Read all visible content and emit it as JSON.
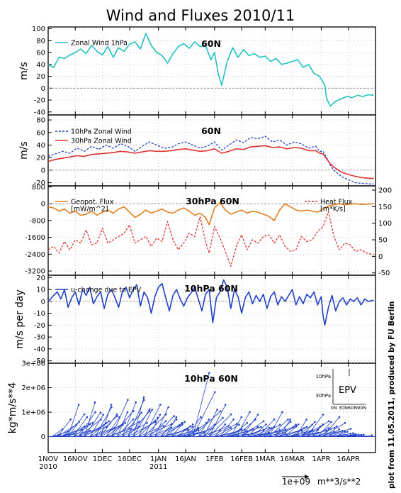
{
  "page": {
    "title": "Wind and Fluxes 2010/11",
    "credit": "plot from 11.05.2011, produced by FU Berlin",
    "x_axis": {
      "tick_labels": [
        "1NOV\n2010",
        "16NOV",
        "1DEC",
        "16DEC",
        "1JAN\n2011",
        "16JAN",
        "1FEB",
        "16FEB",
        "1MAR",
        "16MAR",
        "1APR",
        "16APR"
      ]
    },
    "vector_scale": {
      "magnitude_label": "1e+09",
      "unit_label": "m**3/s**2"
    }
  },
  "colors": {
    "cyan": "#20c0c0",
    "blue": "#2040c8",
    "red": "#e03030",
    "orange": "#e08020",
    "grid": "#b0b0b0"
  },
  "chart_data": [
    {
      "type": "line",
      "panel_label": "60N",
      "ylabel": "m/s",
      "ylim": [
        -45,
        103
      ],
      "yticks": [
        100,
        80,
        60,
        40,
        20,
        0,
        -20,
        -40
      ],
      "x_days": [
        0,
        3,
        6,
        9,
        12,
        15,
        18,
        21,
        24,
        27,
        30,
        33,
        36,
        39,
        42,
        45,
        48,
        51,
        54,
        57,
        60,
        63,
        66,
        69,
        72,
        75,
        78,
        81,
        84,
        87,
        90,
        92,
        94,
        96,
        99,
        102,
        105,
        108,
        111,
        114,
        117,
        120,
        123,
        126,
        129,
        132,
        135,
        138,
        141,
        144,
        147,
        150,
        153,
        154,
        156,
        159,
        162,
        165,
        168,
        171,
        174,
        177,
        180
      ],
      "series": [
        {
          "name": "Zonal Wind 1hPa",
          "color": "cyan",
          "values": [
            40,
            35,
            52,
            50,
            56,
            60,
            66,
            58,
            72,
            62,
            56,
            70,
            52,
            68,
            62,
            74,
            78,
            66,
            92,
            72,
            60,
            55,
            42,
            58,
            70,
            75,
            67,
            78,
            70,
            72,
            48,
            60,
            25,
            5,
            45,
            68,
            52,
            65,
            55,
            58,
            52,
            54,
            45,
            50,
            40,
            42,
            45,
            48,
            35,
            40,
            25,
            20,
            5,
            -18,
            -30,
            -22,
            -18,
            -14,
            -16,
            -12,
            -14,
            -11,
            -12
          ]
        }
      ]
    },
    {
      "type": "line",
      "panel_label": "60N",
      "ylabel": "m/s",
      "ylim": [
        -25,
        88
      ],
      "yticks": [
        80,
        60,
        40,
        20,
        0,
        -20
      ],
      "x_days": [
        0,
        4,
        8,
        12,
        16,
        20,
        24,
        28,
        32,
        36,
        40,
        44,
        48,
        52,
        56,
        60,
        64,
        68,
        72,
        76,
        80,
        84,
        88,
        92,
        96,
        100,
        104,
        108,
        112,
        116,
        120,
        124,
        128,
        132,
        136,
        140,
        144,
        148,
        150,
        152,
        154,
        156,
        158,
        162,
        166,
        170,
        174,
        178,
        180
      ],
      "series": [
        {
          "name": "10hPa Zonal Wind",
          "color": "blue",
          "values": [
            22,
            26,
            30,
            27,
            35,
            30,
            38,
            33,
            40,
            35,
            42,
            38,
            30,
            38,
            45,
            40,
            35,
            36,
            42,
            45,
            40,
            35,
            38,
            45,
            32,
            40,
            48,
            44,
            52,
            50,
            54,
            45,
            48,
            40,
            45,
            42,
            35,
            38,
            30,
            30,
            20,
            8,
            0,
            -10,
            -15,
            -20,
            -21,
            -22,
            -22
          ]
        },
        {
          "name": "30hPa Zonal Wind",
          "color": "red",
          "values": [
            14,
            17,
            19,
            21,
            23,
            22,
            25,
            26,
            27,
            28,
            30,
            29,
            27,
            29,
            31,
            30,
            30,
            31,
            33,
            34,
            32,
            30,
            31,
            34,
            27,
            30,
            34,
            33,
            37,
            38,
            39,
            36,
            37,
            34,
            36,
            35,
            31,
            31,
            27,
            26,
            18,
            10,
            5,
            -3,
            -7,
            -10,
            -12,
            -13,
            -13
          ]
        }
      ]
    },
    {
      "type": "line",
      "panel_label": "30hPa 60N",
      "ylabel": "",
      "left_axis": {
        "ylim": [
          -3400,
          850
        ],
        "yticks": [
          -3200,
          -2400,
          -1600,
          -800,
          0,
          800
        ]
      },
      "right_axis": {
        "ylim": [
          -57,
          213
        ],
        "yticks": [
          200,
          150,
          100,
          50,
          0,
          -50
        ]
      },
      "x_days": [
        0,
        3,
        6,
        9,
        12,
        15,
        18,
        21,
        24,
        27,
        30,
        33,
        36,
        39,
        42,
        45,
        48,
        51,
        54,
        57,
        60,
        63,
        66,
        69,
        72,
        75,
        78,
        81,
        84,
        87,
        89,
        92,
        95,
        98,
        101,
        104,
        107,
        110,
        113,
        116,
        119,
        122,
        125,
        128,
        131,
        134,
        137,
        140,
        143,
        146,
        149,
        152,
        155,
        158,
        161,
        164,
        167,
        170,
        173,
        176,
        180
      ],
      "series": [
        {
          "name": "Geopot. Flux\n[mW/m^2]",
          "axis": "left",
          "color": "orange",
          "values": [
            -150,
            -200,
            -350,
            -250,
            -450,
            -350,
            -550,
            -500,
            -350,
            -550,
            -400,
            -300,
            -450,
            -250,
            -150,
            -400,
            -650,
            -500,
            -300,
            -450,
            -350,
            -250,
            -400,
            -450,
            -300,
            -200,
            -350,
            -550,
            -450,
            -650,
            -1000,
            -200,
            50,
            -300,
            -500,
            -400,
            -300,
            -450,
            -350,
            -400,
            -500,
            -600,
            -800,
            -300,
            0,
            -150,
            -300,
            -350,
            -300,
            -350,
            -400,
            -250,
            -100,
            -50,
            0,
            -50,
            -20,
            0,
            -30,
            -20,
            0
          ]
        },
        {
          "name": "Heat Flux\n[m*K/s]",
          "axis": "right",
          "color": "red",
          "values": [
            20,
            30,
            10,
            45,
            20,
            50,
            40,
            80,
            35,
            40,
            85,
            40,
            50,
            60,
            70,
            95,
            40,
            50,
            60,
            30,
            55,
            45,
            105,
            50,
            20,
            40,
            70,
            60,
            120,
            45,
            10,
            90,
            55,
            15,
            -30,
            30,
            65,
            20,
            50,
            40,
            60,
            65,
            40,
            65,
            30,
            15,
            20,
            60,
            45,
            50,
            75,
            90,
            135,
            60,
            20,
            40,
            35,
            15,
            20,
            10,
            5
          ]
        }
      ]
    },
    {
      "type": "line",
      "panel_label": "10hPa 60N",
      "ylabel": "m/s per day",
      "ylim": [
        -52,
        22
      ],
      "yticks": [
        20,
        10,
        0,
        -10,
        -20,
        -30,
        -40,
        -50
      ],
      "x_days": [
        0,
        3,
        5,
        7,
        9,
        11,
        13,
        15,
        17,
        19,
        21,
        23,
        25,
        27,
        29,
        31,
        33,
        35,
        37,
        39,
        41,
        43,
        45,
        47,
        49,
        51,
        53,
        55,
        57,
        59,
        61,
        63,
        65,
        67,
        69,
        71,
        73,
        75,
        77,
        79,
        81,
        83,
        85,
        87,
        89,
        91,
        93,
        95,
        97,
        99,
        101,
        103,
        105,
        107,
        109,
        111,
        113,
        115,
        117,
        119,
        121,
        123,
        125,
        127,
        129,
        131,
        133,
        135,
        137,
        139,
        141,
        143,
        145,
        147,
        149,
        151,
        152,
        153,
        155,
        157,
        159,
        161,
        163,
        165,
        167,
        169,
        171,
        173,
        175,
        177,
        180
      ],
      "series": [
        {
          "name": "u-change due to EPV",
          "color": "blue",
          "values": [
            0,
            5,
            8,
            2,
            10,
            -5,
            3,
            8,
            -3,
            10,
            5,
            12,
            -2,
            4,
            8,
            -6,
            6,
            10,
            3,
            -5,
            8,
            12,
            3,
            10,
            14,
            -4,
            8,
            3,
            -10,
            4,
            12,
            15,
            3,
            -8,
            5,
            10,
            2,
            -4,
            3,
            7,
            12,
            2,
            -8,
            6,
            10,
            -18,
            3,
            8,
            18,
            12,
            -6,
            10,
            4,
            -10,
            3,
            8,
            -2,
            5,
            0,
            6,
            -6,
            4,
            8,
            -3,
            4,
            0,
            5,
            10,
            -3,
            4,
            -2,
            6,
            3,
            8,
            -3,
            4,
            -12,
            -20,
            -5,
            5,
            -8,
            0,
            3,
            -3,
            2,
            0,
            3,
            -3,
            2,
            0,
            1
          ]
        }
      ]
    },
    {
      "type": "scatter",
      "panel_label": "10hPa 60N",
      "ylabel": "kg*m/s**4",
      "ylim": [
        -650000,
        3000000
      ],
      "yticks": [
        0,
        1000000,
        2000000,
        3000000
      ],
      "ytick_labels": [
        "0",
        "1e+06",
        "2e+06",
        "3e+06"
      ],
      "inset": {
        "ylabels": [
          "10hPa",
          "30hPa"
        ],
        "xlabel": "0N 30N60N90N",
        "label": "EPV"
      },
      "x_days": [
        2,
        5,
        8,
        11,
        14,
        17,
        20,
        23,
        26,
        29,
        32,
        35,
        38,
        41,
        44,
        47,
        50,
        53,
        56,
        59,
        62,
        65,
        68,
        71,
        74,
        77,
        80,
        83,
        86,
        89,
        92,
        95,
        98,
        101,
        104,
        107,
        110,
        113,
        116,
        119,
        122,
        125,
        128,
        131,
        134,
        137,
        140,
        143,
        146,
        149,
        152,
        155,
        158,
        161,
        164,
        167,
        170,
        173,
        176
      ],
      "magnitudes": [
        300000,
        700000,
        600000,
        1300000,
        800000,
        1000000,
        1400000,
        900000,
        1200000,
        1300000,
        800000,
        1500000,
        1000000,
        1400000,
        1500000,
        1600000,
        1100000,
        1300000,
        900000,
        1200000,
        700000,
        800000,
        600000,
        500000,
        400000,
        800000,
        2600000,
        700000,
        1100000,
        1300000,
        500000,
        700000,
        300000,
        800000,
        1000000,
        900000,
        400000,
        500000,
        700000,
        400000,
        1000000,
        600000,
        700000,
        500000,
        400000,
        700000,
        600000,
        900000,
        500000,
        600000,
        800000,
        300000,
        200000,
        100000,
        100000,
        80000,
        60000,
        50000,
        40000
      ],
      "series": []
    }
  ]
}
